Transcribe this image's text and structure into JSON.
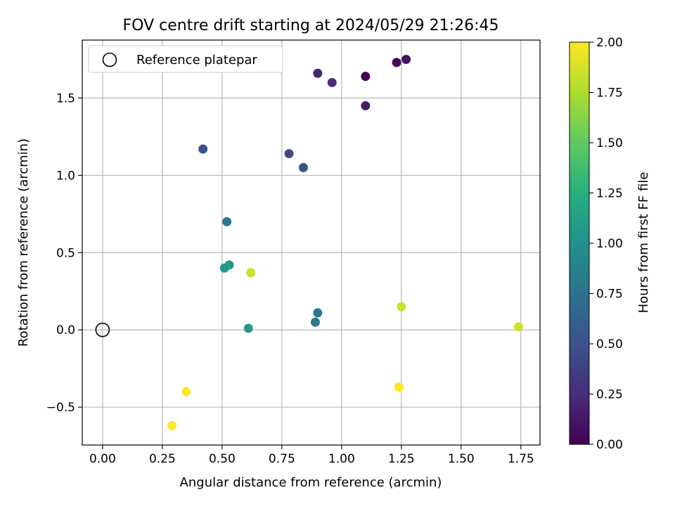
{
  "chart_data": {
    "type": "scatter",
    "title": "FOV centre drift starting at 2024/05/29 21:26:45",
    "xlabel": "Angular distance from reference (arcmin)",
    "ylabel": "Rotation from reference (arcmin)",
    "xlim": [
      -0.085,
      1.83
    ],
    "ylim": [
      -0.745,
      1.875
    ],
    "xticks": [
      0.0,
      0.25,
      0.5,
      0.75,
      1.0,
      1.25,
      1.5,
      1.75
    ],
    "xtick_labels": [
      "0.00",
      "0.25",
      "0.50",
      "0.75",
      "1.00",
      "1.25",
      "1.50",
      "1.75"
    ],
    "yticks": [
      -0.5,
      0.0,
      0.5,
      1.0,
      1.5
    ],
    "ytick_labels": [
      "−0.5",
      "0.0",
      "0.5",
      "1.0",
      "1.5"
    ],
    "grid": true,
    "legend": {
      "placement": "upper-left",
      "entries": [
        {
          "label": "Reference platepar",
          "marker": "open-circle",
          "color": "#000000"
        }
      ]
    },
    "reference_point": {
      "x": 0.0,
      "y": 0.0
    },
    "colorbar": {
      "label": "Hours from first FF file",
      "range": [
        0.0,
        2.0
      ],
      "ticks": [
        0.0,
        0.25,
        0.5,
        0.75,
        1.0,
        1.25,
        1.5,
        1.75,
        2.0
      ],
      "tick_labels": [
        "0.00",
        "0.25",
        "0.50",
        "0.75",
        "1.00",
        "1.25",
        "1.50",
        "1.75",
        "2.00"
      ],
      "colormap": "viridis"
    },
    "points": [
      {
        "x": 1.1,
        "y": 1.64,
        "hours": 0.0
      },
      {
        "x": 1.23,
        "y": 1.73,
        "hours": 0.05
      },
      {
        "x": 1.27,
        "y": 1.75,
        "hours": 0.1
      },
      {
        "x": 1.1,
        "y": 1.45,
        "hours": 0.15
      },
      {
        "x": 0.9,
        "y": 1.66,
        "hours": 0.2
      },
      {
        "x": 0.96,
        "y": 1.6,
        "hours": 0.25
      },
      {
        "x": 0.42,
        "y": 1.17,
        "hours": 0.5
      },
      {
        "x": 0.78,
        "y": 1.14,
        "hours": 0.45
      },
      {
        "x": 0.84,
        "y": 1.05,
        "hours": 0.5
      },
      {
        "x": 0.52,
        "y": 0.7,
        "hours": 0.8
      },
      {
        "x": 0.89,
        "y": 0.05,
        "hours": 0.8
      },
      {
        "x": 0.9,
        "y": 0.11,
        "hours": 0.8
      },
      {
        "x": 0.51,
        "y": 0.4,
        "hours": 1.05
      },
      {
        "x": 0.53,
        "y": 0.42,
        "hours": 1.08
      },
      {
        "x": 0.61,
        "y": 0.01,
        "hours": 1.1
      },
      {
        "x": 1.74,
        "y": 0.02,
        "hours": 1.85
      },
      {
        "x": 1.25,
        "y": 0.15,
        "hours": 1.85
      },
      {
        "x": 0.62,
        "y": 0.37,
        "hours": 1.85
      },
      {
        "x": 0.35,
        "y": -0.4,
        "hours": 2.0
      },
      {
        "x": 0.29,
        "y": -0.62,
        "hours": 2.0
      },
      {
        "x": 1.24,
        "y": -0.37,
        "hours": 2.0
      }
    ]
  }
}
